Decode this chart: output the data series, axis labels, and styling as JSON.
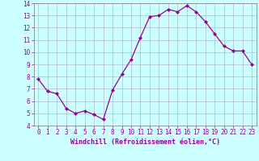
{
  "x": [
    0,
    1,
    2,
    3,
    4,
    5,
    6,
    7,
    8,
    9,
    10,
    11,
    12,
    13,
    14,
    15,
    16,
    17,
    18,
    19,
    20,
    21,
    22,
    23
  ],
  "y": [
    7.8,
    6.8,
    6.6,
    5.4,
    5.0,
    5.2,
    4.9,
    4.5,
    6.9,
    8.2,
    9.4,
    11.2,
    12.9,
    13.0,
    13.5,
    13.3,
    13.8,
    13.3,
    12.5,
    11.5,
    10.5,
    10.1,
    10.1,
    9.0
  ],
  "line_color": "#990099",
  "marker": "D",
  "marker_size": 2.0,
  "bg_color": "#ccffff",
  "grid_color": "#aaaacc",
  "xlabel": "Windchill (Refroidissement éolien,°C)",
  "tick_color": "#990099",
  "ylim": [
    4,
    14
  ],
  "xlim_min": -0.5,
  "xlim_max": 23.5,
  "yticks": [
    4,
    5,
    6,
    7,
    8,
    9,
    10,
    11,
    12,
    13,
    14
  ],
  "xticks": [
    0,
    1,
    2,
    3,
    4,
    5,
    6,
    7,
    8,
    9,
    10,
    11,
    12,
    13,
    14,
    15,
    16,
    17,
    18,
    19,
    20,
    21,
    22,
    23
  ],
  "xtick_labels": [
    "0",
    "1",
    "2",
    "3",
    "4",
    "5",
    "6",
    "7",
    "8",
    "9",
    "10",
    "11",
    "12",
    "13",
    "14",
    "15",
    "16",
    "17",
    "18",
    "19",
    "20",
    "21",
    "22",
    "23"
  ],
  "xlabel_fontsize": 6.0,
  "tick_fontsize": 5.5,
  "linewidth": 0.9,
  "spine_color": "#888888"
}
